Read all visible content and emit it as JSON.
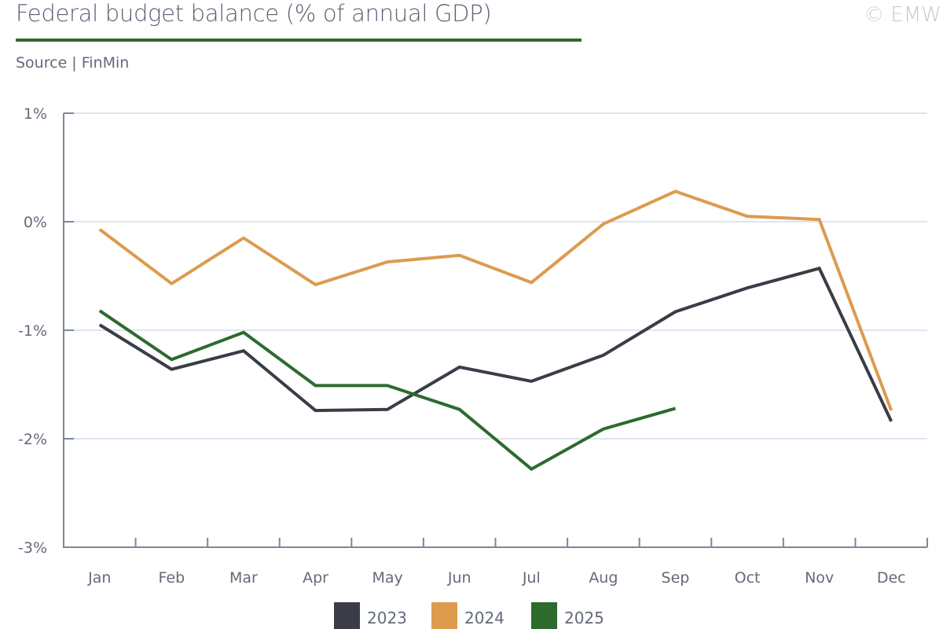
{
  "header": {
    "title": "Federal budget balance (% of annual GDP)",
    "source": "Source | FinMin",
    "copyright": "© EMW"
  },
  "colors": {
    "title_rule": "#2e6a2e",
    "grid": "#dce6f2",
    "axis": "#7d8799"
  },
  "chart_data": {
    "type": "line",
    "title": "Federal budget balance (% of annual GDP)",
    "xlabel": "",
    "ylabel": "",
    "categories": [
      "Jan",
      "Feb",
      "Mar",
      "Apr",
      "May",
      "Jun",
      "Jul",
      "Aug",
      "Sep",
      "Oct",
      "Nov",
      "Dec"
    ],
    "ylim": [
      -3,
      1
    ],
    "yticks": [
      1,
      0,
      -1,
      -2,
      -3
    ],
    "ytick_labels": [
      "1%",
      "0%",
      "-1%",
      "-2%",
      "-3%"
    ],
    "grid": true,
    "legend_position": "bottom-center",
    "series": [
      {
        "name": "2023",
        "color": "#3a3d47",
        "values": [
          -0.95,
          -1.36,
          -1.19,
          -1.74,
          -1.73,
          -1.34,
          -1.47,
          -1.23,
          -0.83,
          -0.61,
          -0.43,
          -1.84
        ]
      },
      {
        "name": "2024",
        "color": "#dc9b4e",
        "values": [
          -0.07,
          -0.57,
          -0.15,
          -0.58,
          -0.37,
          -0.31,
          -0.56,
          -0.02,
          0.28,
          0.05,
          0.02,
          -1.74
        ]
      },
      {
        "name": "2025",
        "color": "#2d6a2e",
        "values": [
          -0.82,
          -1.27,
          -1.02,
          -1.51,
          -1.51,
          -1.73,
          -2.28,
          -1.91,
          -1.72,
          null,
          null,
          null
        ]
      }
    ]
  }
}
